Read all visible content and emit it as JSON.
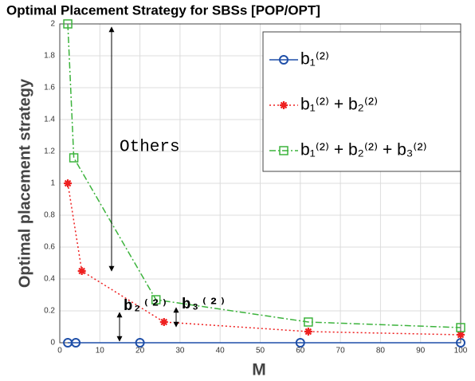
{
  "chart_data": {
    "type": "line",
    "title": "Optimal Placement Strategy for SBSs [POP/OPT]",
    "xlabel": "M",
    "ylabel": "Optimal placement strategy",
    "xlim": [
      0,
      100
    ],
    "xticks": [
      0,
      10,
      20,
      30,
      40,
      50,
      60,
      70,
      80,
      90,
      100
    ],
    "ylim": [
      0,
      2
    ],
    "yticks": [
      0,
      0.2,
      0.4,
      0.6,
      0.8,
      1,
      1.2,
      1.4,
      1.6,
      1.8,
      2
    ],
    "grid": true,
    "legend": "upper right",
    "series": [
      {
        "name": "b₁⁽²⁾",
        "color": "#1f4fa8",
        "marker": "circle",
        "dash": "solid",
        "x": [
          2,
          4,
          20,
          60,
          100
        ],
        "values": [
          0,
          0,
          0,
          0,
          0
        ]
      },
      {
        "name": "b₁⁽²⁾ + b₂⁽²⁾",
        "color": "#ee2020",
        "marker": "star",
        "dash": "dotted",
        "x": [
          2,
          5.5,
          26,
          62,
          100
        ],
        "values": [
          1,
          0.45,
          0.13,
          0.07,
          0.05
        ]
      },
      {
        "name": "b₁⁽²⁾ + b₂⁽²⁾ + b₃⁽²⁾",
        "color": "#3cb33c",
        "marker": "square",
        "dash": "dashdot",
        "x": [
          2,
          3.5,
          24,
          62,
          100
        ],
        "values": [
          2,
          1.16,
          0.27,
          0.13,
          0.095
        ]
      }
    ],
    "annotations": [
      "Others",
      "b₂⁽²⁾",
      "b₃⁽²⁾"
    ]
  }
}
